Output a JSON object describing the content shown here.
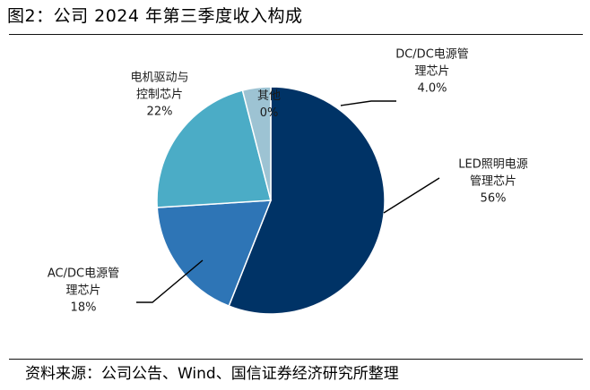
{
  "header": {
    "title": "图2：公司 2024 年第三季度收入构成"
  },
  "footer": {
    "source": "资料来源：公司公告、Wind、国信证券经济研究所整理"
  },
  "chart_data": {
    "type": "pie",
    "title": "公司 2024 年第三季度收入构成",
    "unit": "%",
    "slices": [
      {
        "label_lines": [
          "LED照明电源",
          "管理芯片"
        ],
        "value_label": "56%",
        "value": 56,
        "color": "#003366"
      },
      {
        "label_lines": [
          "AC/DC电源管",
          "理芯片"
        ],
        "value_label": "18%",
        "value": 18,
        "color": "#2e75b6"
      },
      {
        "label_lines": [
          "电机驱动与",
          "控制芯片"
        ],
        "value_label": "22%",
        "value": 22,
        "color": "#4bacc6"
      },
      {
        "label_lines": [
          "DC/DC电源管",
          "理芯片"
        ],
        "value_label": "4.0%",
        "value": 4.0,
        "color": "#9dc3d3"
      },
      {
        "label_lines": [
          "其他"
        ],
        "value_label": "0%",
        "value": 0,
        "color": "#c8dde6"
      }
    ]
  }
}
